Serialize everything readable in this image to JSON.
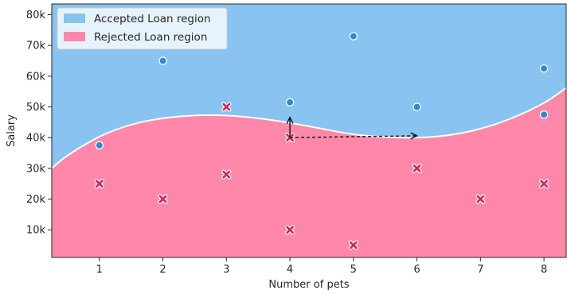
{
  "chart_data": {
    "type": "scatter",
    "title": "",
    "xlabel": "Number of pets",
    "ylabel": "Salary",
    "xlim": [
      0.25,
      8.35
    ],
    "ylim": [
      1000,
      83500
    ],
    "x_ticks": [
      {
        "value": 1,
        "label": "1"
      },
      {
        "value": 2,
        "label": "2"
      },
      {
        "value": 3,
        "label": "3"
      },
      {
        "value": 4,
        "label": "4"
      },
      {
        "value": 5,
        "label": "5"
      },
      {
        "value": 6,
        "label": "6"
      },
      {
        "value": 7,
        "label": "7"
      },
      {
        "value": 8,
        "label": "8"
      }
    ],
    "y_ticks": [
      {
        "value": 10000,
        "label": "10k"
      },
      {
        "value": 20000,
        "label": "20k"
      },
      {
        "value": 30000,
        "label": "30k"
      },
      {
        "value": 40000,
        "label": "40k"
      },
      {
        "value": 50000,
        "label": "50k"
      },
      {
        "value": 60000,
        "label": "60k"
      },
      {
        "value": 70000,
        "label": "70k"
      },
      {
        "value": 80000,
        "label": "80k"
      }
    ],
    "grid": false,
    "legend_position": "top-left",
    "regions": [
      {
        "name": "Accepted Loan region",
        "color": "#88c3f1"
      },
      {
        "name": "Rejected Loan region",
        "color": "#ff88aa"
      }
    ],
    "decision_boundary": [
      [
        0.25,
        30000
      ],
      [
        0.5,
        34200
      ],
      [
        1.0,
        40300
      ],
      [
        1.5,
        44200
      ],
      [
        2.0,
        46300
      ],
      [
        2.5,
        47200
      ],
      [
        3.0,
        47200
      ],
      [
        3.5,
        46300
      ],
      [
        4.0,
        44800
      ],
      [
        4.5,
        42900
      ],
      [
        5.0,
        41100
      ],
      [
        5.5,
        40200
      ],
      [
        6.0,
        40000
      ],
      [
        6.5,
        40800
      ],
      [
        7.0,
        42900
      ],
      [
        7.5,
        46400
      ],
      [
        8.0,
        51300
      ],
      [
        8.35,
        56200
      ]
    ],
    "series": [
      {
        "marker": "circle",
        "color": "#2a8ad4",
        "points": [
          {
            "x": 1,
            "y": 37500
          },
          {
            "x": 2,
            "y": 65000
          },
          {
            "x": 4,
            "y": 51500
          },
          {
            "x": 5,
            "y": 73000
          },
          {
            "x": 6,
            "y": 50000
          },
          {
            "x": 8,
            "y": 62500
          },
          {
            "x": 8,
            "y": 47500
          }
        ]
      },
      {
        "marker": "x",
        "color": "#d81e5b",
        "points": [
          {
            "x": 1,
            "y": 25000
          },
          {
            "x": 2,
            "y": 20000
          },
          {
            "x": 3,
            "y": 50000
          },
          {
            "x": 3,
            "y": 28000
          },
          {
            "x": 4,
            "y": 40000
          },
          {
            "x": 4,
            "y": 10000
          },
          {
            "x": 5,
            "y": 5000
          },
          {
            "x": 6,
            "y": 30000
          },
          {
            "x": 7,
            "y": 20000
          },
          {
            "x": 8,
            "y": 25000
          }
        ]
      }
    ],
    "annotations": [
      {
        "type": "arrow",
        "style": "solid",
        "from": [
          4,
          40000
        ],
        "to": [
          4,
          46600
        ]
      },
      {
        "type": "arrow",
        "style": "dashed",
        "from": [
          4,
          40000
        ],
        "to": [
          6,
          40600
        ]
      }
    ]
  }
}
